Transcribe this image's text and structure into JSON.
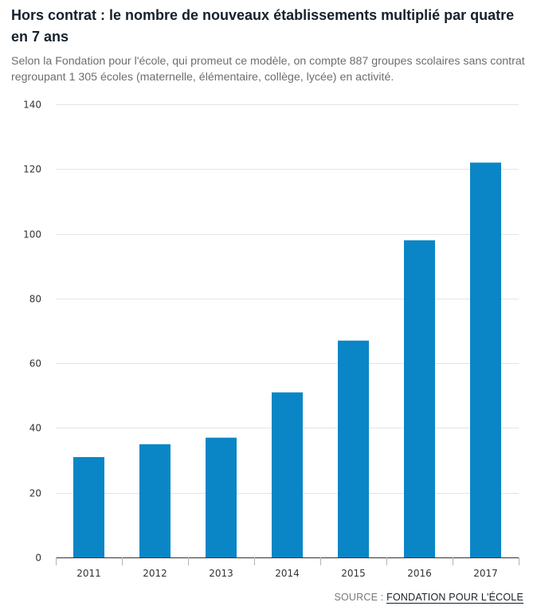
{
  "title": "Hors contrat : le nombre de nouveaux établissements multiplié par quatre en 7 ans",
  "subtitle": "Selon la Fondation pour l'école, qui promeut ce modèle, on compte 887 groupes scolaires sans contrat regroupant 1 305 écoles (maternelle, élémentaire, collège, lycée) en activité.",
  "source": {
    "prefix": "SOURCE : ",
    "link_text": "FONDATION POUR L'ÉCOLE"
  },
  "colors": {
    "bar": "#0a86c6",
    "grid": "#e1e5e8",
    "axis": "#333333"
  },
  "chart_data": {
    "type": "bar",
    "title": "Hors contrat : le nombre de nouveaux établissements multiplié par quatre en 7 ans",
    "xlabel": "",
    "ylabel": "",
    "categories": [
      "2011",
      "2012",
      "2013",
      "2014",
      "2015",
      "2016",
      "2017"
    ],
    "values": [
      31,
      35,
      37,
      51,
      67,
      98,
      122
    ],
    "ylim": [
      0,
      140
    ],
    "yticks": [
      0,
      20,
      40,
      60,
      80,
      100,
      120,
      140
    ],
    "grid": true,
    "legend": "none"
  }
}
